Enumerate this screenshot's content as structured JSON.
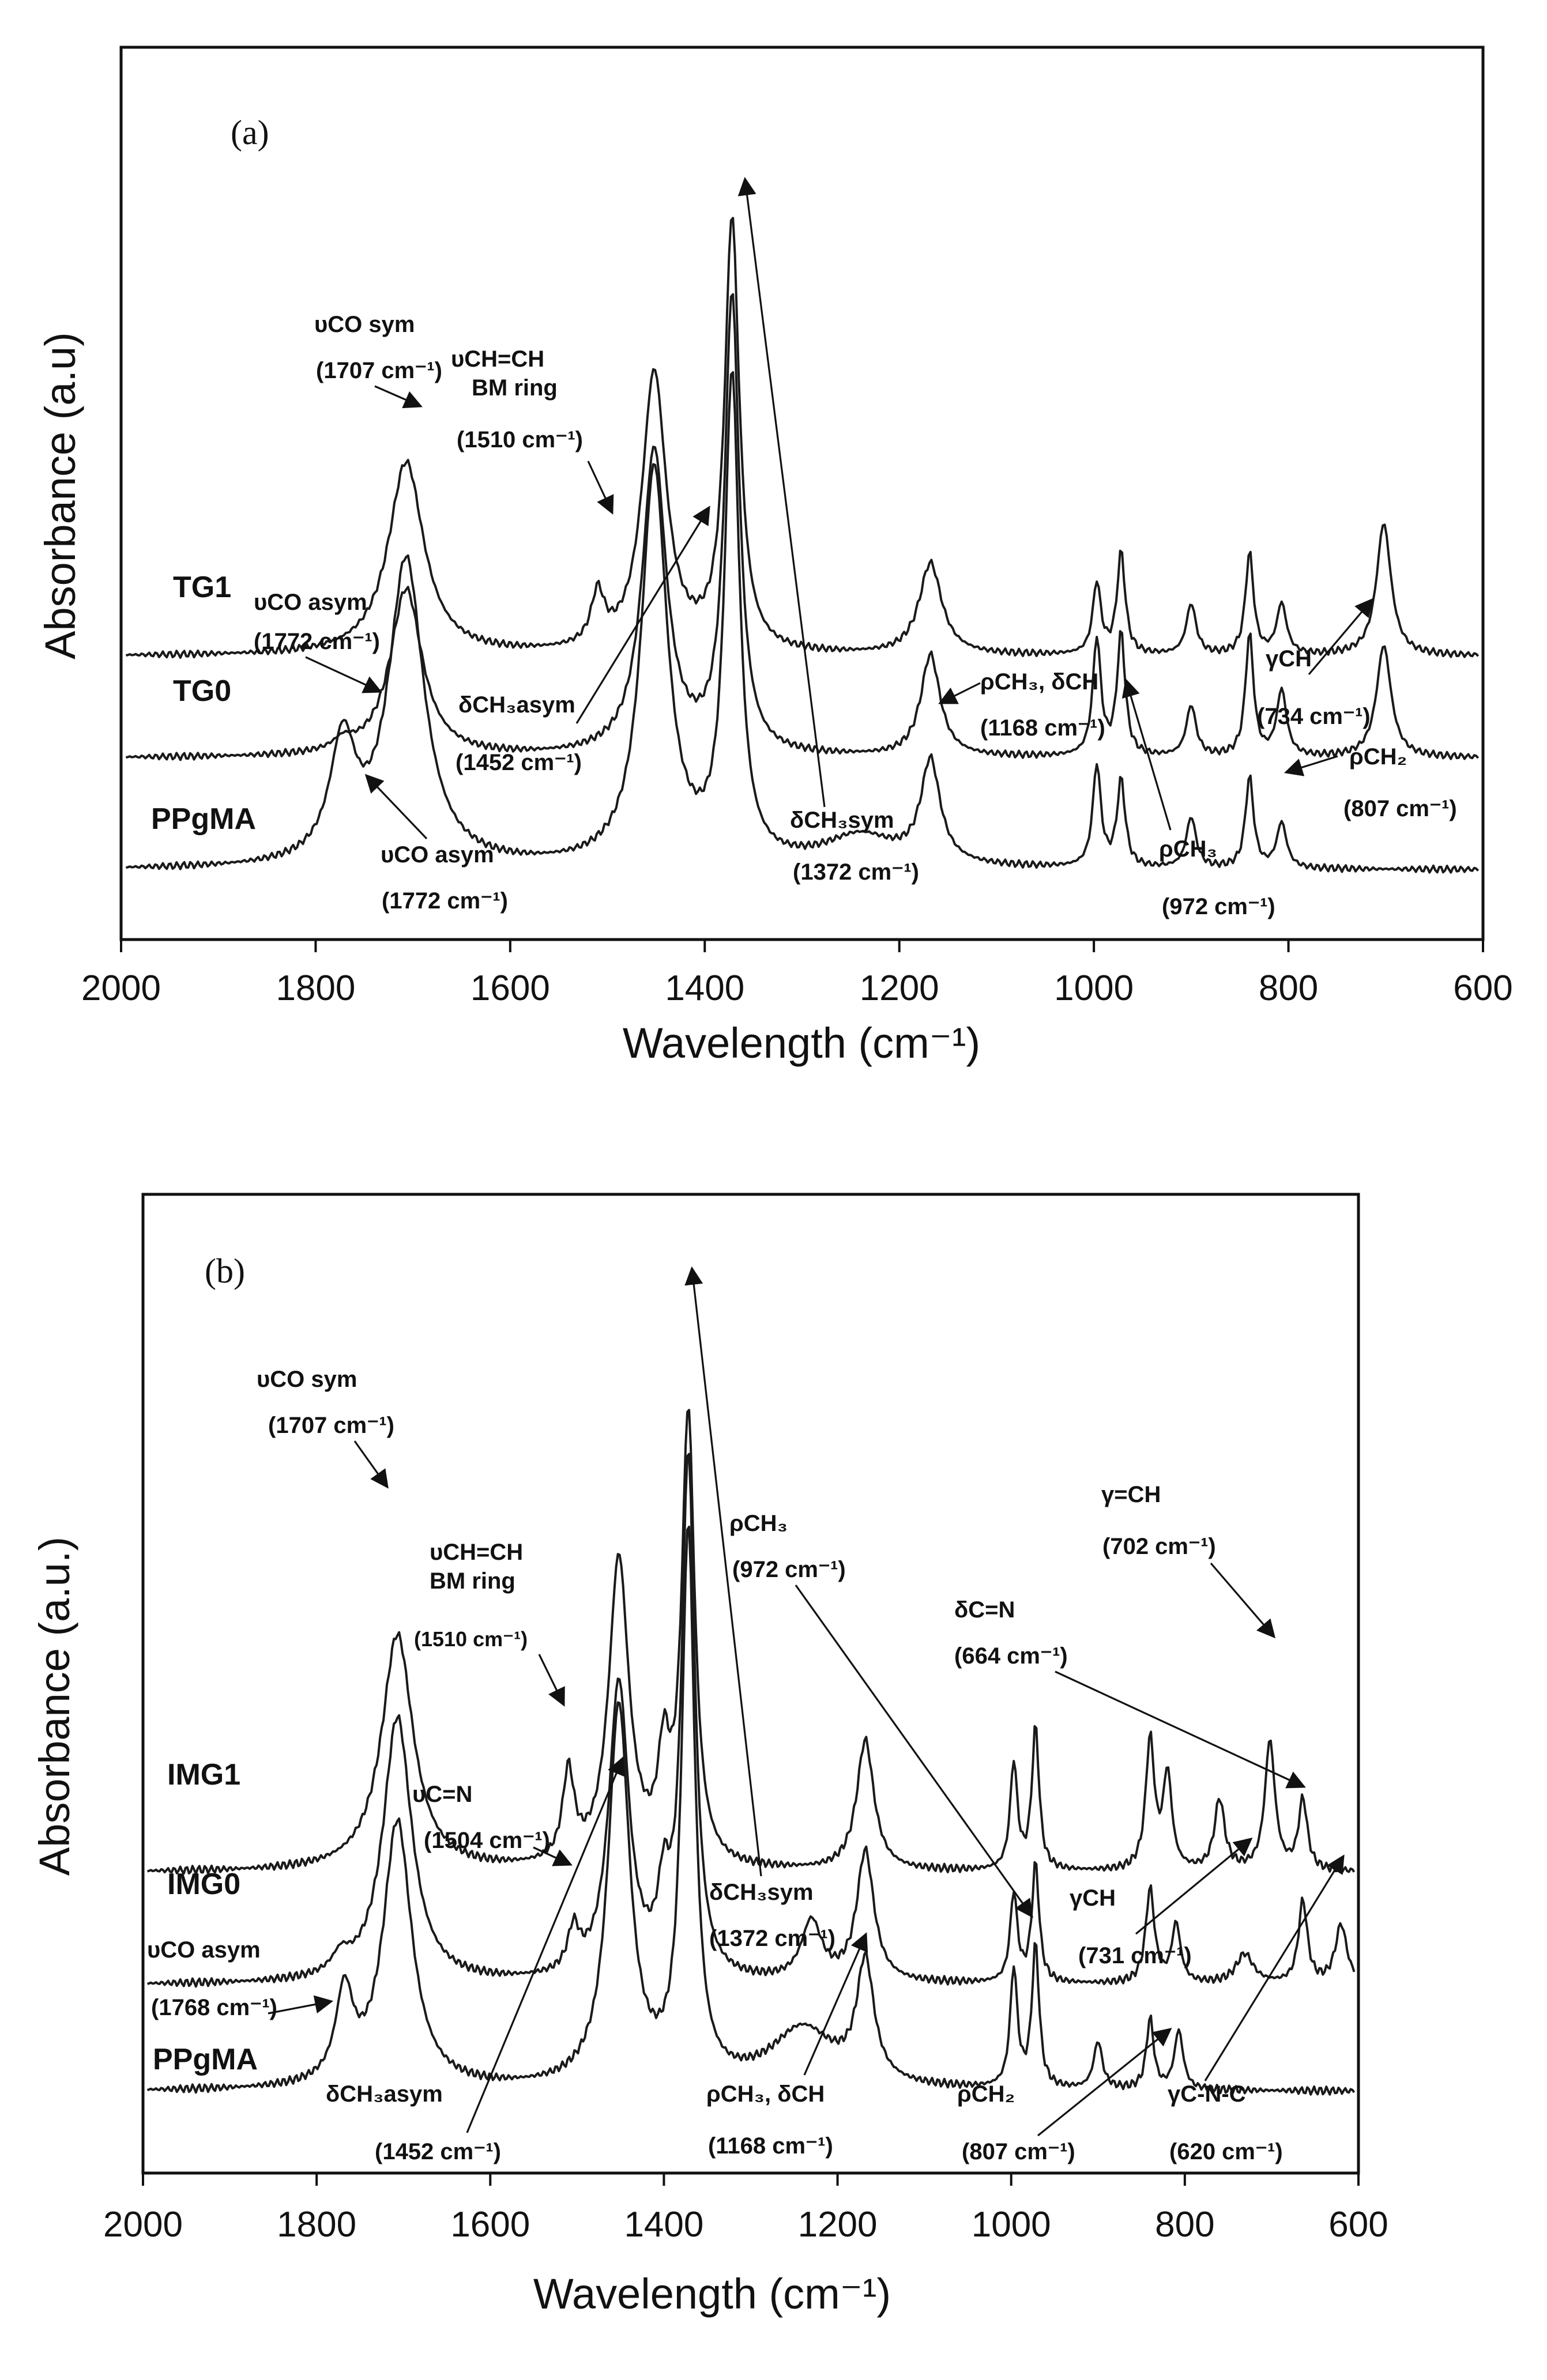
{
  "figure": {
    "background": "#ffffff",
    "line_color": "#1a1a1a"
  },
  "chart_data": [
    {
      "panel": "(a)",
      "type": "line",
      "xlabel": "Wavelength (cm⁻¹)",
      "ylabel": "Absorbance (a.u)",
      "xlim": [
        2000,
        600
      ],
      "x_reversed": true,
      "xticks": [
        "2000",
        "1800",
        "1600",
        "1400",
        "1200",
        "1000",
        "800",
        "600"
      ],
      "grid": false,
      "series": [
        {
          "name": "TG1",
          "baseline": 0.5,
          "peaks": [
            [
              1707,
              0.38,
              22
            ],
            [
              1510,
              0.1,
              8
            ],
            [
              1452,
              0.55,
              15
            ],
            [
              1372,
              0.85,
              9
            ],
            [
              1168,
              0.18,
              14
            ],
            [
              997,
              0.14,
              5
            ],
            [
              972,
              0.2,
              5
            ],
            [
              900,
              0.1,
              6
            ],
            [
              840,
              0.2,
              5
            ],
            [
              807,
              0.1,
              6
            ],
            [
              702,
              0.26,
              9
            ]
          ]
        },
        {
          "name": "TG0",
          "baseline": 0.3,
          "peaks": [
            [
              1772,
              0.02,
              12
            ],
            [
              1707,
              0.33,
              20
            ],
            [
              1452,
              0.6,
              15
            ],
            [
              1372,
              0.9,
              9
            ],
            [
              1168,
              0.2,
              12
            ],
            [
              997,
              0.23,
              5
            ],
            [
              972,
              0.24,
              5
            ],
            [
              900,
              0.1,
              6
            ],
            [
              840,
              0.24,
              5
            ],
            [
              807,
              0.13,
              6
            ],
            [
              702,
              0.22,
              9
            ]
          ]
        },
        {
          "name": "PPgMA",
          "baseline": 0.08,
          "peaks": [
            [
              1772,
              0.23,
              16
            ],
            [
              1707,
              0.6,
              22
            ],
            [
              1452,
              0.78,
              16
            ],
            [
              1372,
              0.95,
              9
            ],
            [
              1240,
              0.06,
              45
            ],
            [
              1168,
              0.2,
              12
            ],
            [
              997,
              0.2,
              5
            ],
            [
              972,
              0.17,
              5
            ],
            [
              900,
              0.1,
              6
            ],
            [
              840,
              0.18,
              5
            ],
            [
              807,
              0.09,
              6
            ]
          ]
        }
      ],
      "annotations": [
        "υCO sym",
        "(1707 cm⁻¹)",
        "υCH=CH",
        "BM ring",
        "(1510 cm⁻¹)",
        "υCO asym",
        "(1772 cm⁻¹)",
        "δCH₃asym",
        "(1452 cm⁻¹)",
        "υCO asym",
        "(1772 cm⁻¹)",
        "δCH₃sym",
        "(1372 cm⁻¹)",
        "ρCH₃, δCH",
        "(1168 cm⁻¹)",
        "ρCH₃",
        "(972 cm⁻¹)",
        "γCH",
        "(734 cm⁻¹)",
        "ρCH₂",
        "(807 cm⁻¹)"
      ]
    },
    {
      "panel": "(b)",
      "type": "line",
      "xlabel": "Wavelength (cm⁻¹)",
      "ylabel": "Absorbance (a.u.)",
      "xlim": [
        2000,
        600
      ],
      "x_reversed": true,
      "xticks": [
        "2000",
        "1800",
        "1600",
        "1400",
        "1200",
        "1000",
        "800",
        "600"
      ],
      "grid": false,
      "series": [
        {
          "name": "IMG1",
          "baseline": 0.42,
          "peaks": [
            [
              1707,
              0.4,
              22
            ],
            [
              1510,
              0.15,
              8
            ],
            [
              1452,
              0.52,
              14
            ],
            [
              1400,
              0.16,
              8
            ],
            [
              1372,
              0.76,
              9
            ],
            [
              1168,
              0.22,
              12
            ],
            [
              997,
              0.18,
              5
            ],
            [
              972,
              0.24,
              5
            ],
            [
              840,
              0.22,
              6
            ],
            [
              820,
              0.16,
              6
            ],
            [
              760,
              0.12,
              7
            ],
            [
              702,
              0.22,
              7
            ],
            [
              664,
              0.12,
              6
            ]
          ]
        },
        {
          "name": "IMG0",
          "baseline": 0.23,
          "peaks": [
            [
              1772,
              0.03,
              12
            ],
            [
              1707,
              0.45,
              20
            ],
            [
              1504,
              0.07,
              8
            ],
            [
              1452,
              0.5,
              14
            ],
            [
              1400,
              0.12,
              8
            ],
            [
              1372,
              0.88,
              9
            ],
            [
              1230,
              0.1,
              14
            ],
            [
              1168,
              0.22,
              12
            ],
            [
              997,
              0.15,
              5
            ],
            [
              972,
              0.2,
              5
            ],
            [
              840,
              0.16,
              6
            ],
            [
              810,
              0.1,
              6
            ],
            [
              731,
              0.05,
              12
            ],
            [
              664,
              0.14,
              6
            ],
            [
              620,
              0.1,
              8
            ]
          ]
        },
        {
          "name": "PPgMA",
          "baseline": 0.05,
          "peaks": [
            [
              1768,
              0.15,
              12
            ],
            [
              1707,
              0.45,
              20
            ],
            [
              1452,
              0.64,
              15
            ],
            [
              1372,
              0.93,
              9
            ],
            [
              1240,
              0.1,
              45
            ],
            [
              1168,
              0.2,
              12
            ],
            [
              997,
              0.2,
              5
            ],
            [
              972,
              0.24,
              5
            ],
            [
              900,
              0.08,
              6
            ],
            [
              840,
              0.12,
              5
            ],
            [
              807,
              0.1,
              6
            ]
          ]
        }
      ],
      "annotations": [
        "υCO sym",
        "(1707 cm⁻¹)",
        "υCH=CH",
        "BM ring",
        "(1510 cm⁻¹)",
        "υC=N",
        "(1504 cm⁻¹)",
        "υCO asym",
        "(1768 cm⁻¹)",
        "δCH₃asym",
        "(1452 cm⁻¹)",
        "ρCH₃",
        "(972 cm⁻¹)",
        "δCH₃sym",
        "(1372 cm⁻¹)",
        "ρCH₃, δCH",
        "(1168 cm⁻¹)",
        "δC=N",
        "(664 cm⁻¹)",
        "γ=CH",
        "(702 cm⁻¹)",
        "γCH",
        "(731 cm⁻¹)",
        "ρCH₂",
        "(807 cm⁻¹)",
        "γC-N-C",
        "(620 cm⁻¹)"
      ]
    }
  ]
}
